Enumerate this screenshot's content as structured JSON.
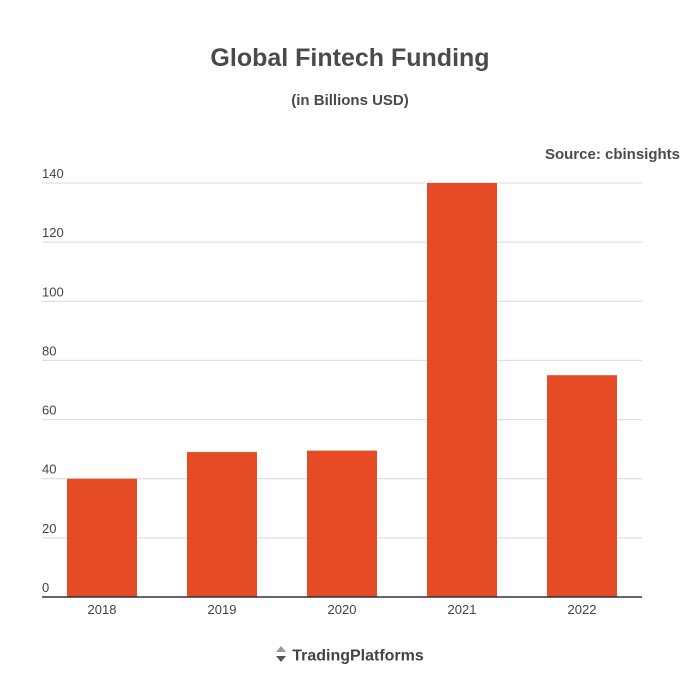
{
  "chart_data": {
    "type": "bar",
    "title": "Global Fintech Funding",
    "subtitle": "(in Billions USD)",
    "source": "Source: cbinsights",
    "categories": [
      "2018",
      "2019",
      "2020",
      "2021",
      "2022"
    ],
    "values": [
      40,
      49,
      49.5,
      140,
      75
    ],
    "yticks": [
      "0",
      "20",
      "40",
      "60",
      "80",
      "100",
      "120",
      "140"
    ],
    "ylim": [
      0,
      140
    ],
    "xlabel": "",
    "ylabel": "",
    "grid": true,
    "bar_color": "#e54b24"
  },
  "brand": {
    "name": "TradingPlatforms",
    "icon": "up-down-arrows-icon"
  }
}
